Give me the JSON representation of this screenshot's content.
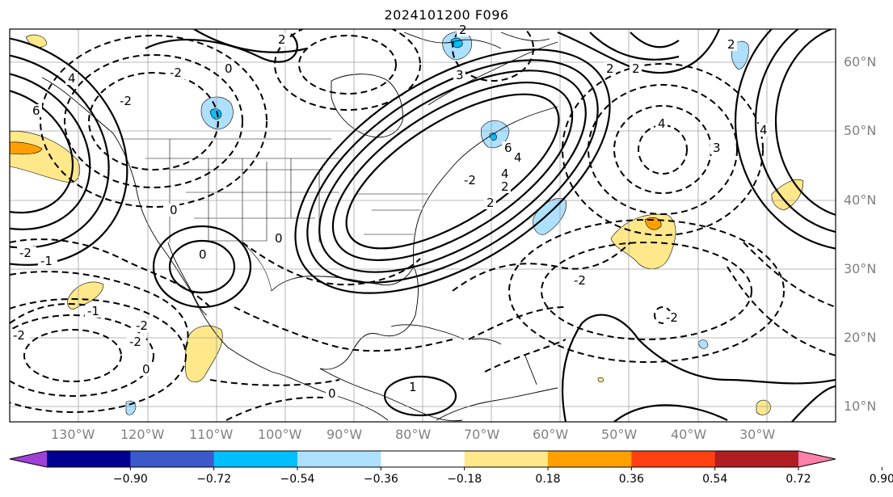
{
  "title": "2024101200 F096",
  "lon_labels": [
    "130°W",
    "120°W",
    "110°W",
    "100°W",
    "90°W",
    "80°W",
    "70°W",
    "60°W",
    "50°W",
    "40°W",
    "30°W"
  ],
  "lat_labels": [
    "60°N",
    "50°N",
    "40°N",
    "30°N",
    "20°N",
    "10°N"
  ],
  "colorbar": {
    "ticks": [
      "−0.90",
      "−0.72",
      "−0.54",
      "−0.36",
      "−0.18",
      "0.18",
      "0.36",
      "0.54",
      "0.72",
      "0.90"
    ],
    "colors": [
      "#a040d8",
      "#000090",
      "#3a5acc",
      "#00bfff",
      "#aee0ff",
      "#ffffff",
      "#ffe88a",
      "#ffa000",
      "#ff4010",
      "#b01e23",
      "#ff80a8"
    ]
  },
  "contour_labels": [
    "6",
    "4",
    "2",
    "0",
    "0",
    "2",
    "2",
    "4",
    "3",
    "4",
    "2",
    "2",
    "4",
    "4",
    "6",
    "3",
    "2",
    "2",
    "-2",
    "-2",
    "0",
    "-2",
    "-1",
    "-2",
    "-2",
    "0",
    "0",
    "-2",
    "-2",
    "-2",
    "-1",
    "-2",
    "0",
    "1"
  ]
}
